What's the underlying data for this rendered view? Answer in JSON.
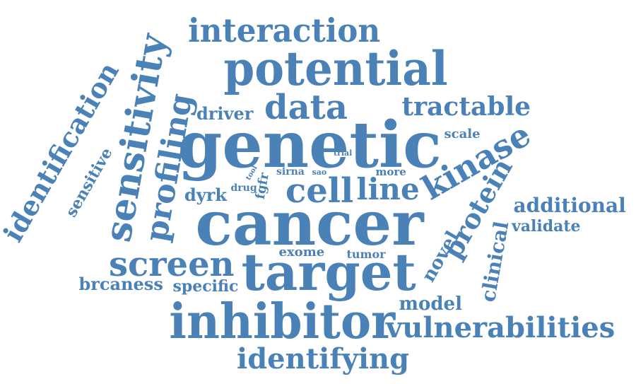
{
  "color": "#4a81b6",
  "words": [
    {
      "id": "cancer",
      "text": "cancer"
    },
    {
      "id": "genetic",
      "text": "genetic"
    },
    {
      "id": "target",
      "text": "target"
    },
    {
      "id": "inhibitor",
      "text": "inhibitor"
    },
    {
      "id": "potential",
      "text": "potential"
    },
    {
      "id": "sensitivity",
      "text": "sensitivity"
    },
    {
      "id": "cell",
      "text": "cell"
    },
    {
      "id": "line",
      "text": "line"
    },
    {
      "id": "kinase",
      "text": "kinase"
    },
    {
      "id": "profiling",
      "text": "profiling"
    },
    {
      "id": "screen",
      "text": "screen"
    },
    {
      "id": "data",
      "text": "data"
    },
    {
      "id": "interaction",
      "text": "interaction"
    },
    {
      "id": "identification",
      "text": "identification"
    },
    {
      "id": "vulnerabilities",
      "text": "vulnerabilities"
    },
    {
      "id": "identifying",
      "text": "identifying"
    },
    {
      "id": "protein",
      "text": "protein"
    },
    {
      "id": "tractable",
      "text": "tractable"
    },
    {
      "id": "additional",
      "text": "additional"
    },
    {
      "id": "clinical",
      "text": "clinical"
    },
    {
      "id": "novel",
      "text": "novel"
    },
    {
      "id": "model",
      "text": "model"
    },
    {
      "id": "validate",
      "text": "validate"
    },
    {
      "id": "driver",
      "text": "driver"
    },
    {
      "id": "brcaness",
      "text": "brcaness"
    },
    {
      "id": "specific",
      "text": "specific"
    },
    {
      "id": "sensitive",
      "text": "sensitive"
    },
    {
      "id": "dyrk",
      "text": "dyrk"
    },
    {
      "id": "scale",
      "text": "scale"
    },
    {
      "id": "exome",
      "text": "exome"
    },
    {
      "id": "tumor",
      "text": "tumor"
    },
    {
      "id": "fgfr",
      "text": "fgfr"
    },
    {
      "id": "more",
      "text": "more"
    },
    {
      "id": "drug",
      "text": "drug"
    },
    {
      "id": "sirna",
      "text": "sirna"
    },
    {
      "id": "sao",
      "text": "sao"
    },
    {
      "id": "trial",
      "text": "trial"
    },
    {
      "id": "tool",
      "text": "tool"
    }
  ]
}
